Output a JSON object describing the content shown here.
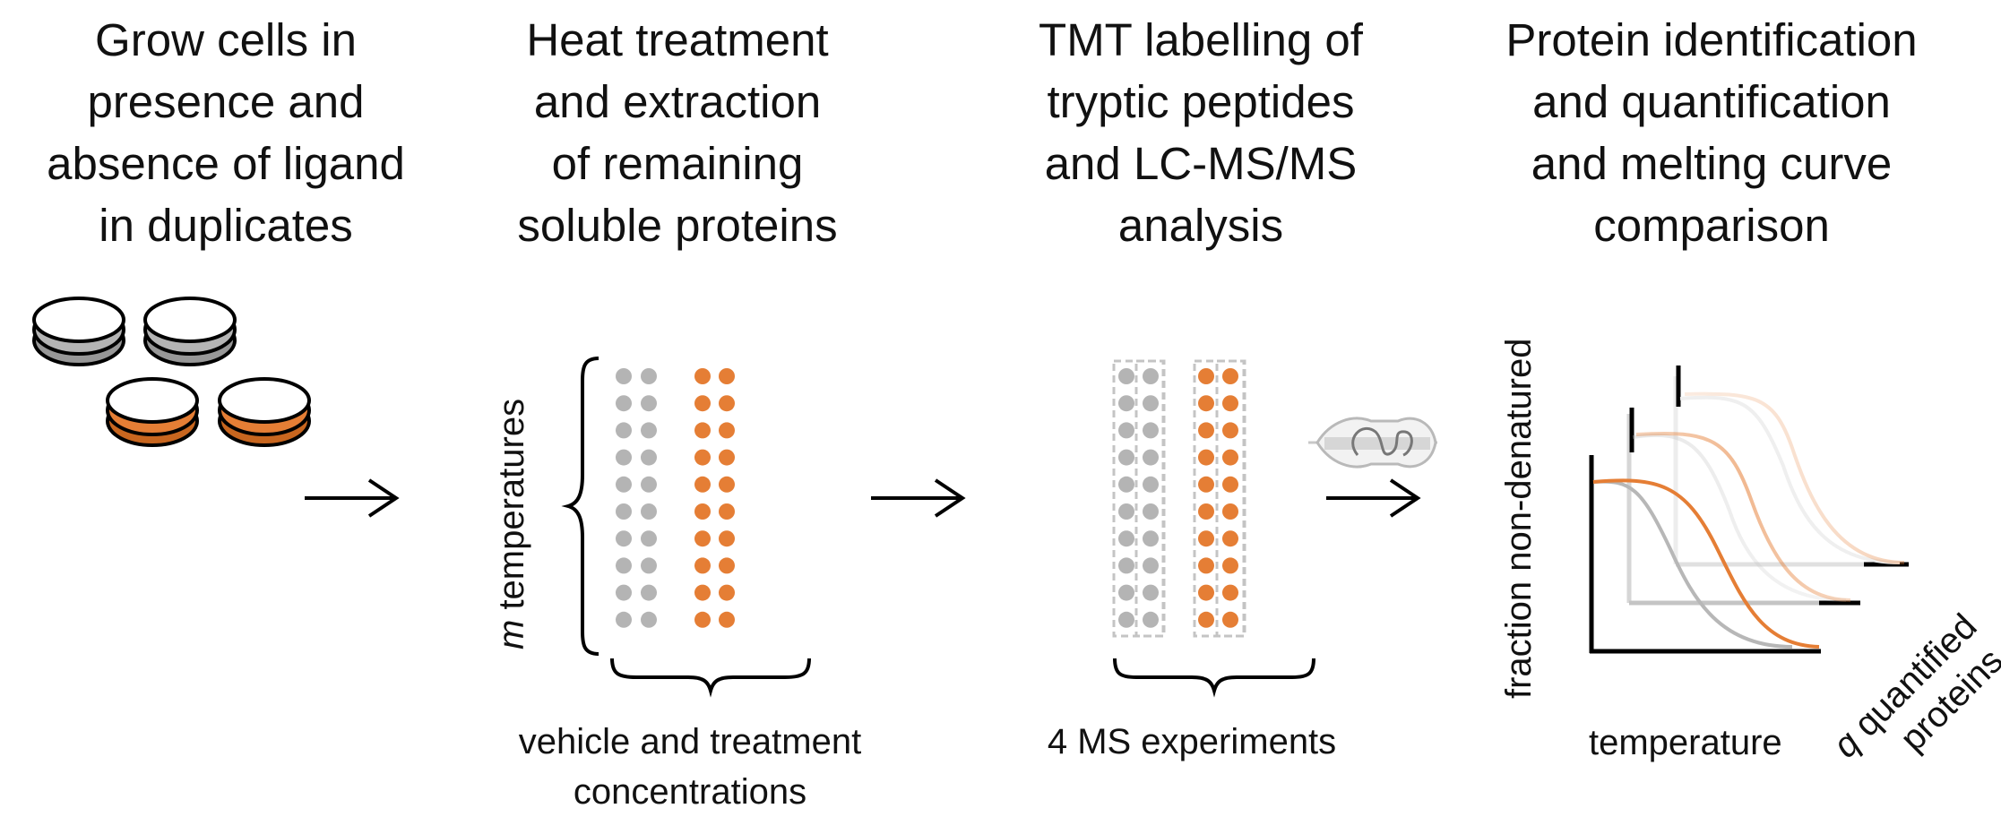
{
  "steps": [
    {
      "lines": [
        "Grow cells in",
        "presence and",
        "absence of ligand",
        "in duplicates"
      ]
    },
    {
      "lines": [
        "Heat treatment",
        "and extraction",
        "of remaining",
        "soluble proteins"
      ]
    },
    {
      "lines": [
        "TMT labelling of",
        "tryptic peptides",
        "and LC-MS/MS",
        "analysis"
      ]
    },
    {
      "lines": [
        "Protein identification",
        "and quantification",
        "and melting curve",
        "comparison"
      ]
    }
  ],
  "labels": {
    "temperatures_var": "m",
    "temperatures_text": " temperatures",
    "vehicle": [
      "vehicle and treatment",
      "concentrations"
    ],
    "ms_experiments": "4 MS experiments",
    "y_axis": "fraction non-denatured",
    "x_axis": "temperature",
    "proteins_var": "q",
    "proteins_line1": " quantified",
    "proteins_line2": "proteins"
  },
  "colors": {
    "vehicle": "#b4b4b4",
    "vehicle_dark": "#979797",
    "treatment": "#e57e35",
    "treatment_dark": "#c8661f",
    "ink": "#000000"
  },
  "icons": [
    "petri-dish-icon",
    "arrow-right-icon",
    "curly-brace-icon",
    "mass-spectrometer-icon",
    "melting-curve-icon"
  ]
}
